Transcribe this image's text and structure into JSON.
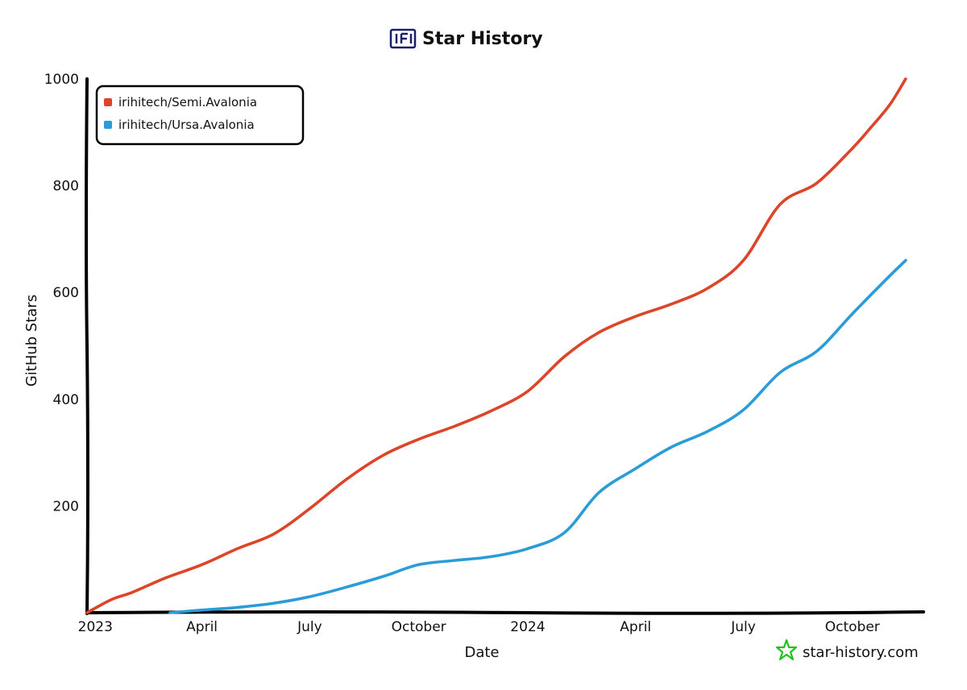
{
  "chart_data": {
    "type": "line",
    "title": "Star History",
    "xlabel": "Date",
    "ylabel": "GitHub Stars",
    "xlim": [
      "2022-12-25",
      "2024-11-30"
    ],
    "ylim": [
      0,
      1000
    ],
    "x_ticks": [
      {
        "label": "2023",
        "date": "2023-01-01"
      },
      {
        "label": "April",
        "date": "2023-04-01"
      },
      {
        "label": "July",
        "date": "2023-07-01"
      },
      {
        "label": "October",
        "date": "2023-10-01"
      },
      {
        "label": "2024",
        "date": "2024-01-01"
      },
      {
        "label": "April",
        "date": "2024-04-01"
      },
      {
        "label": "July",
        "date": "2024-07-01"
      },
      {
        "label": "October",
        "date": "2024-10-01"
      }
    ],
    "y_ticks": [
      200,
      400,
      600,
      800,
      1000
    ],
    "grid": false,
    "legend_position": "top-left",
    "series": [
      {
        "name": "irihitech/Semi.Avalonia",
        "color": "#dd4528",
        "points": [
          [
            "2022-12-25",
            0
          ],
          [
            "2023-01-15",
            25
          ],
          [
            "2023-02-01",
            38
          ],
          [
            "2023-03-01",
            65
          ],
          [
            "2023-04-01",
            90
          ],
          [
            "2023-05-01",
            120
          ],
          [
            "2023-06-01",
            148
          ],
          [
            "2023-07-01",
            195
          ],
          [
            "2023-08-01",
            250
          ],
          [
            "2023-09-01",
            295
          ],
          [
            "2023-10-01",
            325
          ],
          [
            "2023-11-01",
            350
          ],
          [
            "2023-12-01",
            378
          ],
          [
            "2024-01-01",
            415
          ],
          [
            "2024-02-01",
            480
          ],
          [
            "2024-03-01",
            525
          ],
          [
            "2024-04-01",
            555
          ],
          [
            "2024-05-01",
            578
          ],
          [
            "2024-06-01",
            608
          ],
          [
            "2024-07-01",
            660
          ],
          [
            "2024-08-01",
            765
          ],
          [
            "2024-09-01",
            805
          ],
          [
            "2024-10-01",
            870
          ],
          [
            "2024-10-15",
            905
          ],
          [
            "2024-11-01",
            950
          ],
          [
            "2024-11-15",
            1000
          ]
        ]
      },
      {
        "name": "irihitech/Ursa.Avalonia",
        "color": "#2b9cd8",
        "points": [
          [
            "2023-03-05",
            0
          ],
          [
            "2023-04-01",
            5
          ],
          [
            "2023-05-01",
            10
          ],
          [
            "2023-06-01",
            18
          ],
          [
            "2023-07-01",
            30
          ],
          [
            "2023-08-01",
            48
          ],
          [
            "2023-09-01",
            68
          ],
          [
            "2023-10-01",
            90
          ],
          [
            "2023-11-01",
            98
          ],
          [
            "2023-12-01",
            105
          ],
          [
            "2024-01-01",
            120
          ],
          [
            "2024-02-01",
            150
          ],
          [
            "2024-03-01",
            225
          ],
          [
            "2024-04-01",
            270
          ],
          [
            "2024-05-01",
            310
          ],
          [
            "2024-06-01",
            340
          ],
          [
            "2024-07-01",
            380
          ],
          [
            "2024-08-01",
            450
          ],
          [
            "2024-09-01",
            490
          ],
          [
            "2024-10-01",
            560
          ],
          [
            "2024-11-01",
            630
          ],
          [
            "2024-11-15",
            660
          ]
        ]
      }
    ]
  },
  "watermark": {
    "text": "star-history.com",
    "icon": "star-icon",
    "color": "#22c11f"
  },
  "logo": {
    "icon": "star-history-logo-icon",
    "color": "#1b1f6b"
  }
}
